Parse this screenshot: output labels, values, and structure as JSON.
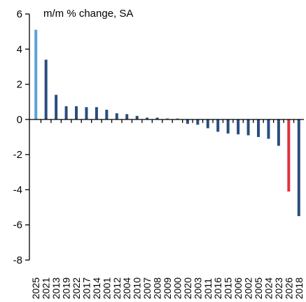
{
  "chart_data": {
    "type": "bar",
    "ylabel": "m/m % change, SA",
    "ylim": [
      -8,
      6
    ],
    "yticks": [
      6,
      4,
      2,
      0,
      -2,
      -4,
      -6,
      -8
    ],
    "grid": false,
    "categories": [
      "2025",
      "2021",
      "2013",
      "2019",
      "2022",
      "2017",
      "2014",
      "2001",
      "2012",
      "2004",
      "2010",
      "2007",
      "2008",
      "2009",
      "2000",
      "2020",
      "2003",
      "2011",
      "2016",
      "2015",
      "2006",
      "2002",
      "2005",
      "2024",
      "2023",
      "2026",
      "2018"
    ],
    "values": [
      5.1,
      3.4,
      1.4,
      0.75,
      0.75,
      0.7,
      0.7,
      0.55,
      0.35,
      0.3,
      0.2,
      0.1,
      0.1,
      0.05,
      0.05,
      -0.25,
      -0.3,
      -0.5,
      -0.7,
      -0.8,
      -0.85,
      -0.9,
      -1.0,
      -1.1,
      -1.5,
      -4.1,
      -5.5
    ],
    "colors": {
      "default": "#2b4d7e",
      "highlight_first": "#5aa3d6",
      "highlight_current": "#e03040"
    },
    "highlight": {
      "2025": "#5aa3d6",
      "2026": "#e03040"
    }
  }
}
